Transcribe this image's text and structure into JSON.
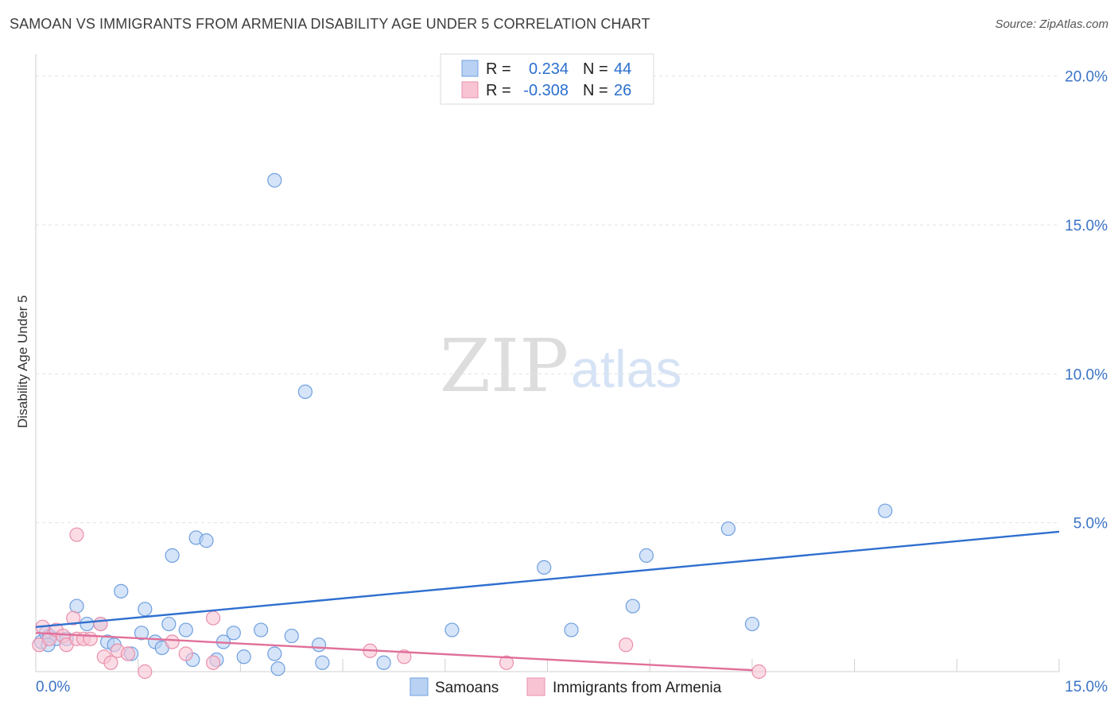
{
  "header": {
    "title": "SAMOAN VS IMMIGRANTS FROM ARMENIA DISABILITY AGE UNDER 5 CORRELATION CHART",
    "source": "Source: ZipAtlas.com"
  },
  "watermark": {
    "zip": "ZIP",
    "atlas": "atlas"
  },
  "colors": {
    "samoans_fill": "#b9d2f3",
    "samoans_stroke": "#6f9fe0",
    "samoans_line": "#2f6fcf",
    "armenia_fill": "#f8c4d4",
    "armenia_stroke": "#ea8fac",
    "armenia_line": "#e0709a",
    "grid": "#e3e3e3",
    "tick_text": "#3a73c5"
  },
  "legend": {
    "rows": [
      {
        "series": "samoans",
        "r_label": "R =",
        "r_value": "0.234",
        "n_label": "N =",
        "n_value": "44"
      },
      {
        "series": "armenia",
        "r_label": "R =",
        "r_value": "-0.308",
        "n_label": "N =",
        "n_value": "26"
      }
    ]
  },
  "chart_data": {
    "type": "scatter",
    "title": "SAMOAN VS IMMIGRANTS FROM ARMENIA DISABILITY AGE UNDER 5 CORRELATION CHART",
    "xlabel": "",
    "ylabel": "Disability Age Under 5",
    "xlim": [
      0,
      15
    ],
    "ylim": [
      0,
      20.5
    ],
    "x_tick_labels": [
      {
        "value": 0,
        "label": "0.0%"
      },
      {
        "value": 15,
        "label": "15.0%"
      }
    ],
    "y_tick_labels": [
      {
        "value": 5,
        "label": "5.0%"
      },
      {
        "value": 10,
        "label": "10.0%"
      },
      {
        "value": 15,
        "label": "15.0%"
      },
      {
        "value": 20,
        "label": "20.0%"
      }
    ],
    "y_gridlines": [
      5,
      10,
      15,
      20
    ],
    "x_minor_ticks": [
      1.5,
      3.0,
      4.5,
      6.0,
      7.5,
      9.0,
      10.5,
      12.0,
      13.5,
      15.0
    ],
    "legend_position": "bottom-center",
    "series": [
      {
        "name": "Samoans",
        "key": "samoans",
        "r": 0.234,
        "n": 44,
        "trend": {
          "x": [
            0.0,
            15.0
          ],
          "y": [
            1.5,
            4.7
          ]
        },
        "points": [
          [
            0.08,
            1.0
          ],
          [
            0.15,
            1.3
          ],
          [
            0.2,
            1.2
          ],
          [
            0.3,
            1.1
          ],
          [
            0.45,
            1.1
          ],
          [
            0.6,
            2.2
          ],
          [
            0.75,
            1.6
          ],
          [
            0.95,
            1.6
          ],
          [
            1.05,
            1.0
          ],
          [
            1.15,
            0.9
          ],
          [
            1.25,
            2.7
          ],
          [
            1.4,
            0.6
          ],
          [
            1.55,
            1.3
          ],
          [
            1.6,
            2.1
          ],
          [
            1.75,
            1.0
          ],
          [
            1.85,
            0.8
          ],
          [
            1.95,
            1.6
          ],
          [
            2.0,
            3.9
          ],
          [
            2.2,
            1.4
          ],
          [
            2.3,
            0.4
          ],
          [
            2.35,
            4.5
          ],
          [
            2.5,
            4.4
          ],
          [
            2.65,
            0.4
          ],
          [
            2.75,
            1.0
          ],
          [
            2.9,
            1.3
          ],
          [
            3.05,
            0.5
          ],
          [
            3.3,
            1.4
          ],
          [
            3.5,
            0.6
          ],
          [
            3.55,
            0.1
          ],
          [
            3.5,
            16.5
          ],
          [
            3.75,
            1.2
          ],
          [
            3.95,
            9.4
          ],
          [
            4.15,
            0.9
          ],
          [
            4.2,
            0.3
          ],
          [
            5.1,
            0.3
          ],
          [
            6.1,
            1.4
          ],
          [
            7.45,
            3.5
          ],
          [
            7.85,
            1.4
          ],
          [
            8.75,
            2.2
          ],
          [
            8.95,
            3.9
          ],
          [
            10.15,
            4.8
          ],
          [
            10.5,
            1.6
          ],
          [
            12.45,
            5.4
          ],
          [
            0.18,
            0.9
          ]
        ]
      },
      {
        "name": "Immigrants from Armenia",
        "key": "armenia",
        "r": -0.308,
        "n": 26,
        "trend": {
          "x": [
            0.0,
            10.5
          ],
          "y": [
            1.3,
            0.05
          ]
        },
        "points": [
          [
            0.05,
            0.9
          ],
          [
            0.1,
            1.5
          ],
          [
            0.2,
            1.1
          ],
          [
            0.3,
            1.4
          ],
          [
            0.4,
            1.2
          ],
          [
            0.45,
            0.9
          ],
          [
            0.55,
            1.8
          ],
          [
            0.6,
            1.1
          ],
          [
            0.7,
            1.1
          ],
          [
            0.8,
            1.1
          ],
          [
            0.95,
            1.6
          ],
          [
            1.0,
            0.5
          ],
          [
            1.1,
            0.3
          ],
          [
            1.2,
            0.7
          ],
          [
            1.35,
            0.6
          ],
          [
            0.6,
            4.6
          ],
          [
            1.6,
            0.0
          ],
          [
            2.0,
            1.0
          ],
          [
            2.2,
            0.6
          ],
          [
            2.6,
            1.8
          ],
          [
            2.6,
            0.3
          ],
          [
            4.9,
            0.7
          ],
          [
            5.4,
            0.5
          ],
          [
            6.9,
            0.3
          ],
          [
            8.65,
            0.9
          ],
          [
            10.6,
            0.0
          ]
        ]
      }
    ]
  }
}
